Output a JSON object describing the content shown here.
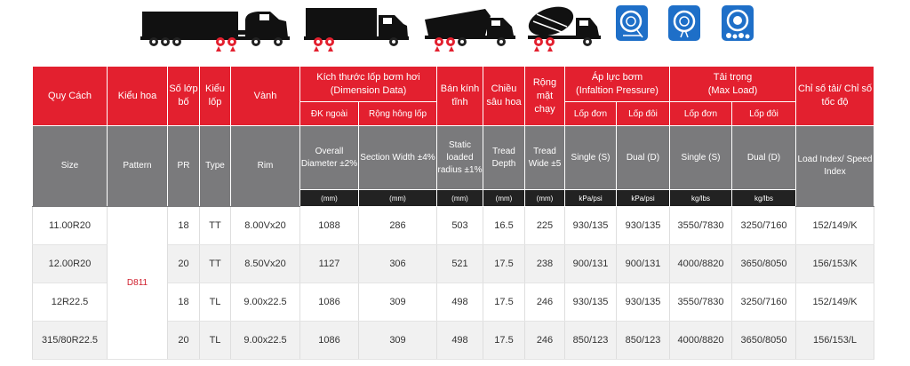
{
  "banner": {
    "icons": [
      "highway-tire-icon",
      "road-tire-icon",
      "offroad-tire-icon"
    ]
  },
  "table": {
    "header_vi": {
      "size": "Quy Cách",
      "pattern": "Kiểu hoa",
      "pr": "Số lớp bố",
      "type": "Kiểu lốp",
      "rim": "Vành",
      "dimension": "Kích thước lốp bơm hơi",
      "dimension_en": "(Dimension Data)",
      "static_radius": "Bán kính tĩnh",
      "tread_depth": "Chiều sâu hoa",
      "tread_wide": "Rộng mặt chạy",
      "inflation": "Áp lực bơm",
      "inflation_en": "(Infaltion Pressure)",
      "load": "Tải trọng",
      "load_en": "(Max Load)",
      "load_speed": "Chỉ số tải/ Chỉ số tốc độ"
    },
    "subheader_vi": {
      "overall_dia": "ĐK ngoài",
      "section_width": "Rộng hông lốp",
      "single_pressure": "Lốp đơn",
      "dual_pressure": "Lốp đôi",
      "single_load": "Lốp đơn",
      "dual_load": "Lốp đôi"
    },
    "header_en": {
      "size": "Size",
      "pattern": "Pattern",
      "pr": "PR",
      "type": "Type",
      "rim": "Rim",
      "overall_dia": "Overall Diameter ±2%",
      "section_width": "Section Width ±4%",
      "static_radius": "Static loaded radius ±1%",
      "tread_depth": "Tread Depth",
      "tread_wide": "Tread Wide ±5",
      "single_pressure": "Single (S)",
      "dual_pressure": "Dual (D)",
      "single_load": "Single (S)",
      "dual_load": "Dual (D)",
      "load_speed": "Load Index/ Speed Index"
    },
    "units": {
      "overall_dia": "(mm)",
      "section_width": "(mm)",
      "static_radius": "(mm)",
      "tread_depth": "(mm)",
      "tread_wide": "(mm)",
      "single_pressure": "kPa/psi",
      "dual_pressure": "kPa/psi",
      "single_load": "kg/lbs",
      "dual_load": "kg/lbs"
    },
    "pattern": "D811",
    "rows": [
      {
        "size": "11.00R20",
        "pr": "18",
        "type": "TT",
        "rim": "8.00Vx20",
        "od": "1088",
        "sw": "286",
        "slr": "503",
        "td": "16.5",
        "tw": "225",
        "sp": "930/135",
        "dp": "930/135",
        "sl": "3550/7830",
        "dl": "3250/7160",
        "li": "152/149/K"
      },
      {
        "size": "12.00R20",
        "pr": "20",
        "type": "TT",
        "rim": "8.50Vx20",
        "od": "1127",
        "sw": "306",
        "slr": "521",
        "td": "17.5",
        "tw": "238",
        "sp": "900/131",
        "dp": "900/131",
        "sl": "4000/8820",
        "dl": "3650/8050",
        "li": "156/153/K"
      },
      {
        "size": "12R22.5",
        "pr": "18",
        "type": "TL",
        "rim": "9.00x22.5",
        "od": "1086",
        "sw": "309",
        "slr": "498",
        "td": "17.5",
        "tw": "246",
        "sp": "930/135",
        "dp": "930/135",
        "sl": "3550/7830",
        "dl": "3250/7160",
        "li": "152/149/K"
      },
      {
        "size": "315/80R22.5",
        "pr": "20",
        "type": "TL",
        "rim": "9.00x22.5",
        "od": "1086",
        "sw": "309",
        "slr": "498",
        "td": "17.5",
        "tw": "246",
        "sp": "850/123",
        "dp": "850/123",
        "sl": "4000/8820",
        "dl": "3650/8050",
        "li": "156/153/L"
      }
    ]
  },
  "colors": {
    "header_red": "#e3202f",
    "header_gray": "#7a7a7c",
    "unit_black": "#222222",
    "icon_blue": "#1e6fc8",
    "pattern_red": "#d0202e"
  }
}
